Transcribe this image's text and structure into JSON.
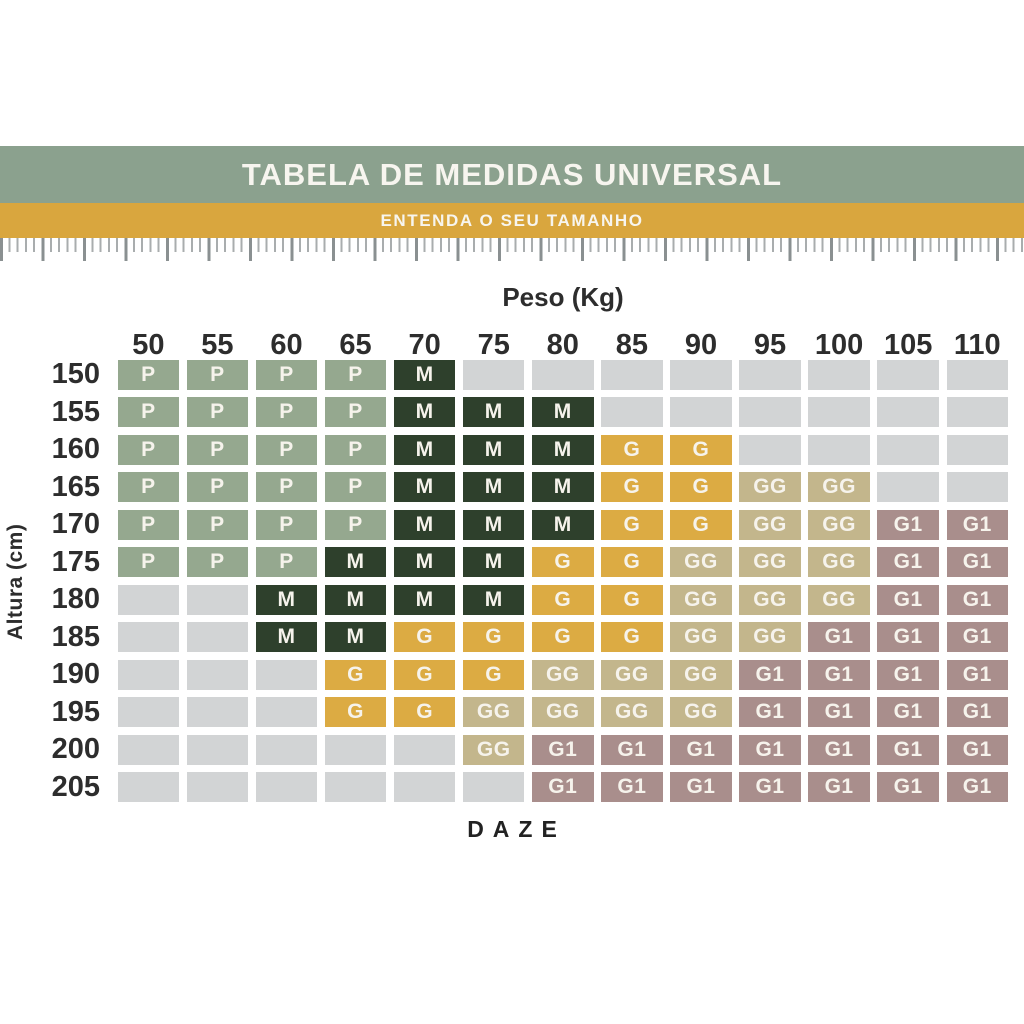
{
  "header": {
    "title": "TABELA DE MEDIDAS UNIVERSAL",
    "subtitle": "ENTENDA O SEU TAMANHO"
  },
  "table": {
    "weight_axis_label": "Peso (Kg)",
    "height_axis_label": "Altura (cm)"
  },
  "footer": {
    "brand": "DAZE"
  },
  "colors": {
    "band_green": "#8ba18e",
    "band_gold": "#d9a63e",
    "P": "#95a88f",
    "M": "#2e402c",
    "G": "#dcab43",
    "GG": "#c3b68c",
    "G1": "#a98e8c",
    "empty": "#d2d4d5"
  },
  "chart_data": {
    "type": "heatmap",
    "title": "TABELA DE MEDIDAS UNIVERSAL",
    "subtitle": "ENTENDA O SEU TAMANHO",
    "xlabel": "Peso (Kg)",
    "ylabel": "Altura (cm)",
    "x": [
      "50",
      "55",
      "60",
      "65",
      "70",
      "75",
      "80",
      "85",
      "90",
      "95",
      "100",
      "105",
      "110"
    ],
    "y": [
      "150",
      "155",
      "160",
      "165",
      "170",
      "175",
      "180",
      "185",
      "190",
      "195",
      "200",
      "205"
    ],
    "size_codes": [
      "P",
      "M",
      "G",
      "GG",
      "G1"
    ],
    "values": [
      [
        "P",
        "P",
        "P",
        "P",
        "M",
        "",
        "",
        "",
        "",
        "",
        "",
        "",
        ""
      ],
      [
        "P",
        "P",
        "P",
        "P",
        "M",
        "M",
        "M",
        "",
        "",
        "",
        "",
        "",
        ""
      ],
      [
        "P",
        "P",
        "P",
        "P",
        "M",
        "M",
        "M",
        "G",
        "G",
        "",
        "",
        "",
        ""
      ],
      [
        "P",
        "P",
        "P",
        "P",
        "M",
        "M",
        "M",
        "G",
        "G",
        "GG",
        "GG",
        "",
        ""
      ],
      [
        "P",
        "P",
        "P",
        "P",
        "M",
        "M",
        "M",
        "G",
        "G",
        "GG",
        "GG",
        "G1",
        "G1"
      ],
      [
        "P",
        "P",
        "P",
        "M",
        "M",
        "M",
        "G",
        "G",
        "GG",
        "GG",
        "GG",
        "G1",
        "G1"
      ],
      [
        "",
        "",
        "M",
        "M",
        "M",
        "M",
        "G",
        "G",
        "GG",
        "GG",
        "GG",
        "G1",
        "G1"
      ],
      [
        "",
        "",
        "M",
        "M",
        "G",
        "G",
        "G",
        "G",
        "GG",
        "GG",
        "G1",
        "G1",
        "G1"
      ],
      [
        "",
        "",
        "",
        "G",
        "G",
        "G",
        "GG",
        "GG",
        "GG",
        "G1",
        "G1",
        "G1",
        "G1"
      ],
      [
        "",
        "",
        "",
        "G",
        "G",
        "GG",
        "GG",
        "GG",
        "GG",
        "G1",
        "G1",
        "G1",
        "G1"
      ],
      [
        "",
        "",
        "",
        "",
        "",
        "GG",
        "G1",
        "G1",
        "G1",
        "G1",
        "G1",
        "G1",
        "G1"
      ],
      [
        "",
        "",
        "",
        "",
        "",
        "",
        "G1",
        "G1",
        "G1",
        "G1",
        "G1",
        "G1",
        "G1"
      ]
    ]
  }
}
